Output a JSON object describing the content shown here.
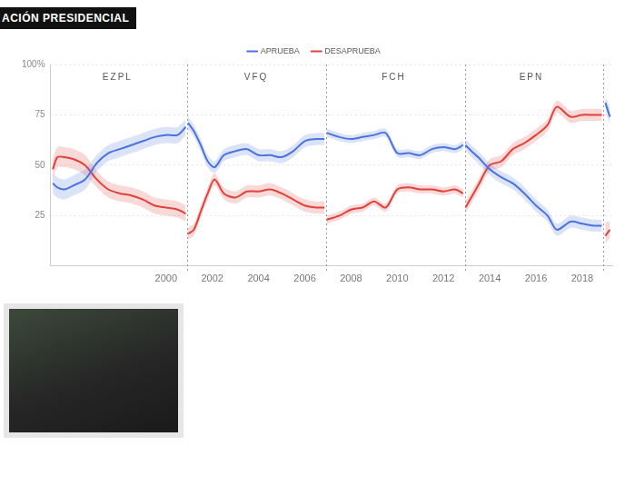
{
  "chart_data": {
    "type": "line",
    "title": "ACIÓN PRESIDENCIAL",
    "legend": "top",
    "grid": true,
    "xlim": [
      1995,
      2019.3
    ],
    "xticks": [
      2000,
      2002,
      2004,
      2006,
      2008,
      2010,
      2012,
      2014,
      2016,
      2018
    ],
    "ylim": [
      0,
      100
    ],
    "yticks": [
      25,
      50,
      75,
      {
        "value": 100,
        "label": "100%"
      }
    ],
    "annotations": [
      {
        "text": "EZPL",
        "x": 1997.9
      },
      {
        "text": "VFQ",
        "x": 2003.9
      },
      {
        "text": "FCH",
        "x": 2009.85
      },
      {
        "text": "EPN",
        "x": 2015.8
      }
    ],
    "dividers": [
      2000.92,
      2006.92,
      2012.92,
      2018.92
    ],
    "x": [
      1995.1,
      1995.3,
      1995.6,
      1996,
      1996.5,
      1997,
      1997.5,
      1998,
      1998.5,
      1999,
      1999.5,
      2000,
      2000.5,
      2000.85,
      2000.92,
      2000.95,
      2001.2,
      2001.5,
      2001.8,
      2002.1,
      2002.5,
      2003,
      2003.5,
      2004,
      2004.5,
      2005,
      2005.5,
      2006,
      2006.5,
      2006.85,
      2006.92,
      2006.95,
      2007.5,
      2008,
      2008.5,
      2009,
      2009.5,
      2010,
      2010.5,
      2011,
      2011.5,
      2012,
      2012.5,
      2012.85,
      2012.92,
      2012.95,
      2013.3,
      2013.5,
      2014,
      2014.5,
      2015,
      2015.5,
      2016,
      2016.5,
      2016.9,
      2017.5,
      2018,
      2018.5,
      2018.85,
      2018.92,
      2019.0,
      2019.2
    ],
    "series": [
      {
        "name": "APRUEBA",
        "color": "#4a72e0",
        "values": [
          41,
          39,
          38,
          40,
          43,
          51,
          56,
          58,
          60,
          62,
          64,
          65,
          65,
          69,
          null,
          71,
          67,
          60,
          52,
          49,
          55,
          57,
          58,
          55,
          55,
          54,
          57,
          62,
          63,
          63,
          null,
          66,
          64,
          63,
          64,
          65,
          66,
          56,
          56,
          55,
          58,
          59,
          58,
          60,
          null,
          60,
          56,
          54,
          48,
          44,
          41,
          36,
          30,
          25,
          18,
          22,
          21,
          20,
          20,
          null,
          81,
          74
        ],
        "lower": [
          36,
          34,
          33,
          35,
          38,
          47,
          52,
          54,
          56,
          58,
          60,
          61,
          61,
          65,
          null,
          68,
          64,
          57,
          49,
          46,
          52,
          54,
          55,
          52,
          52,
          51,
          54,
          59,
          60,
          60,
          null,
          64,
          62,
          61,
          62,
          63,
          64,
          54,
          54,
          53,
          56,
          57,
          56,
          58,
          null,
          57,
          53,
          51,
          45,
          41,
          38,
          33,
          27,
          22,
          15,
          19,
          18,
          17,
          17,
          null,
          77,
          70
        ],
        "upper": [
          46,
          44,
          43,
          45,
          48,
          55,
          60,
          62,
          64,
          66,
          68,
          69,
          69,
          73,
          null,
          74,
          70,
          63,
          55,
          52,
          58,
          60,
          61,
          58,
          58,
          57,
          60,
          65,
          66,
          66,
          null,
          68,
          66,
          65,
          66,
          67,
          68,
          58,
          58,
          57,
          60,
          61,
          60,
          62,
          null,
          63,
          59,
          57,
          51,
          47,
          44,
          39,
          33,
          28,
          21,
          25,
          24,
          23,
          23,
          null,
          85,
          78
        ]
      },
      {
        "name": "DESAPRUEBA",
        "color": "#e0413a",
        "values": [
          48,
          54,
          54,
          53,
          50,
          43,
          38,
          36,
          35,
          33,
          30,
          29,
          28,
          26,
          null,
          16,
          18,
          27,
          36,
          43,
          36,
          34,
          37,
          37,
          38,
          36,
          33,
          30,
          29,
          29,
          null,
          23,
          25,
          28,
          29,
          32,
          29,
          38,
          39,
          38,
          38,
          37,
          38,
          36,
          null,
          29,
          36,
          40,
          50,
          52,
          58,
          61,
          65,
          70,
          79,
          74,
          75,
          75,
          75,
          null,
          15,
          18
        ],
        "lower": [
          43,
          49,
          49,
          48,
          45,
          39,
          34,
          32,
          31,
          29,
          26,
          25,
          24,
          22,
          null,
          13,
          15,
          24,
          33,
          40,
          33,
          31,
          34,
          34,
          35,
          33,
          30,
          27,
          26,
          26,
          null,
          21,
          23,
          26,
          27,
          30,
          27,
          36,
          37,
          36,
          36,
          35,
          36,
          34,
          null,
          26,
          33,
          37,
          47,
          49,
          55,
          58,
          62,
          67,
          76,
          71,
          72,
          72,
          72,
          null,
          11,
          14
        ],
        "upper": [
          53,
          59,
          59,
          58,
          55,
          47,
          42,
          40,
          39,
          37,
          34,
          33,
          32,
          30,
          null,
          19,
          21,
          30,
          39,
          46,
          39,
          37,
          40,
          40,
          41,
          39,
          36,
          33,
          32,
          32,
          null,
          25,
          27,
          30,
          31,
          34,
          31,
          40,
          41,
          40,
          40,
          39,
          40,
          38,
          null,
          32,
          39,
          43,
          53,
          55,
          61,
          64,
          68,
          73,
          82,
          77,
          78,
          78,
          78,
          null,
          22,
          22
        ]
      }
    ]
  }
}
